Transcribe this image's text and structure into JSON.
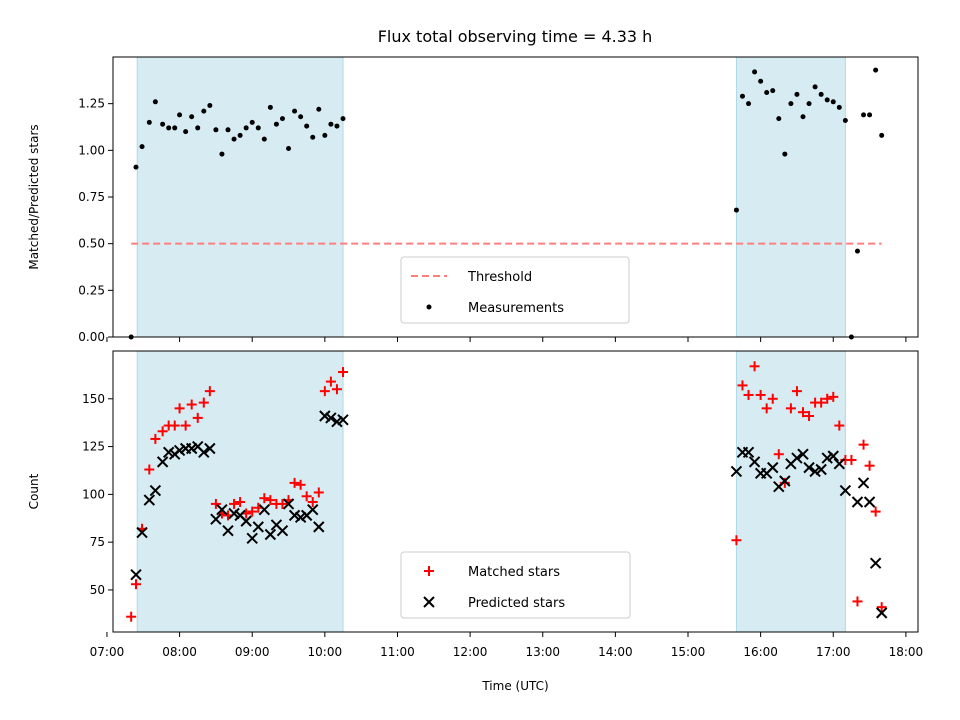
{
  "figure": {
    "title": "Flux total observing time = 4.33 h"
  },
  "chart_data": [
    {
      "type": "scatter",
      "ylabel": "Matched/Predicted stars",
      "xlabel": "",
      "ylim": [
        0,
        1.5
      ],
      "xlim": [
        "07:05",
        "18:10"
      ],
      "yticks": [
        0.0,
        0.25,
        0.5,
        0.75,
        1.0,
        1.25
      ],
      "ytick_labels": [
        "0.00",
        "0.25",
        "0.50",
        "0.75",
        "1.00",
        "1.25"
      ],
      "legend_position": "bottom-center",
      "shaded_intervals": [
        {
          "start": "07:25",
          "end": "10:15"
        },
        {
          "start": "15:40",
          "end": "17:10"
        }
      ],
      "series": [
        {
          "name": "Threshold",
          "type": "line",
          "style": "dashed",
          "color": "#ff7f7f",
          "x": [
            "07:20",
            "17:40"
          ],
          "y": [
            0.5,
            0.5
          ]
        },
        {
          "name": "Measurements",
          "type": "scatter",
          "color": "#000000",
          "points": [
            [
              "07:20",
              0.0
            ],
            [
              "07:24",
              0.91
            ],
            [
              "07:29",
              1.02
            ],
            [
              "07:35",
              1.15
            ],
            [
              "07:40",
              1.26
            ],
            [
              "07:46",
              1.14
            ],
            [
              "07:51",
              1.12
            ],
            [
              "07:56",
              1.12
            ],
            [
              "08:00",
              1.19
            ],
            [
              "08:05",
              1.1
            ],
            [
              "08:10",
              1.18
            ],
            [
              "08:15",
              1.12
            ],
            [
              "08:20",
              1.21
            ],
            [
              "08:25",
              1.24
            ],
            [
              "08:30",
              1.11
            ],
            [
              "08:35",
              0.98
            ],
            [
              "08:40",
              1.11
            ],
            [
              "08:45",
              1.06
            ],
            [
              "08:50",
              1.08
            ],
            [
              "08:55",
              1.12
            ],
            [
              "09:00",
              1.15
            ],
            [
              "09:05",
              1.12
            ],
            [
              "09:10",
              1.06
            ],
            [
              "09:15",
              1.23
            ],
            [
              "09:20",
              1.14
            ],
            [
              "09:25",
              1.17
            ],
            [
              "09:30",
              1.01
            ],
            [
              "09:35",
              1.21
            ],
            [
              "09:40",
              1.18
            ],
            [
              "09:45",
              1.13
            ],
            [
              "09:50",
              1.07
            ],
            [
              "09:55",
              1.22
            ],
            [
              "10:00",
              1.08
            ],
            [
              "10:05",
              1.14
            ],
            [
              "10:10",
              1.13
            ],
            [
              "10:15",
              1.17
            ],
            [
              "15:40",
              0.68
            ],
            [
              "15:45",
              1.29
            ],
            [
              "15:50",
              1.25
            ],
            [
              "15:55",
              1.42
            ],
            [
              "16:00",
              1.37
            ],
            [
              "16:05",
              1.31
            ],
            [
              "16:10",
              1.32
            ],
            [
              "16:15",
              1.17
            ],
            [
              "16:20",
              0.98
            ],
            [
              "16:25",
              1.25
            ],
            [
              "16:30",
              1.3
            ],
            [
              "16:35",
              1.18
            ],
            [
              "16:40",
              1.25
            ],
            [
              "16:45",
              1.34
            ],
            [
              "16:50",
              1.3
            ],
            [
              "16:55",
              1.27
            ],
            [
              "17:00",
              1.26
            ],
            [
              "17:05",
              1.23
            ],
            [
              "17:10",
              1.16
            ],
            [
              "17:15",
              0.0
            ],
            [
              "17:20",
              0.46
            ],
            [
              "17:25",
              1.19
            ],
            [
              "17:30",
              1.19
            ],
            [
              "17:35",
              1.43
            ],
            [
              "17:40",
              1.08
            ]
          ]
        }
      ]
    },
    {
      "type": "scatter",
      "ylabel": "Count",
      "xlabel": "Time (UTC)",
      "ylim": [
        28,
        175
      ],
      "xlim": [
        "07:05",
        "18:10"
      ],
      "yticks": [
        50,
        75,
        100,
        125,
        150
      ],
      "ytick_labels": [
        "50",
        "75",
        "100",
        "125",
        "150"
      ],
      "xticks": [
        "07:00",
        "08:00",
        "09:00",
        "10:00",
        "11:00",
        "12:00",
        "13:00",
        "14:00",
        "15:00",
        "16:00",
        "17:00",
        "18:00"
      ],
      "legend_position": "bottom-center",
      "shaded_intervals": [
        {
          "start": "07:25",
          "end": "10:15"
        },
        {
          "start": "15:40",
          "end": "17:10"
        }
      ],
      "series": [
        {
          "name": "Matched stars",
          "marker": "plus",
          "color": "#ff0000",
          "points": [
            [
              "07:20",
              36
            ],
            [
              "07:24",
              53
            ],
            [
              "07:29",
              82
            ],
            [
              "07:35",
              113
            ],
            [
              "07:40",
              129
            ],
            [
              "07:46",
              133
            ],
            [
              "07:51",
              136
            ],
            [
              "07:56",
              136
            ],
            [
              "08:00",
              145
            ],
            [
              "08:05",
              136
            ],
            [
              "08:10",
              147
            ],
            [
              "08:15",
              140
            ],
            [
              "08:20",
              148
            ],
            [
              "08:25",
              154
            ],
            [
              "08:30",
              95
            ],
            [
              "08:35",
              90
            ],
            [
              "08:40",
              89
            ],
            [
              "08:45",
              95
            ],
            [
              "08:50",
              96
            ],
            [
              "08:55",
              90
            ],
            [
              "09:00",
              91
            ],
            [
              "09:05",
              93
            ],
            [
              "09:10",
              98
            ],
            [
              "09:15",
              97
            ],
            [
              "09:20",
              95
            ],
            [
              "09:25",
              95
            ],
            [
              "09:30",
              97
            ],
            [
              "09:35",
              106
            ],
            [
              "09:40",
              105
            ],
            [
              "09:45",
              99
            ],
            [
              "09:50",
              96
            ],
            [
              "09:55",
              101
            ],
            [
              "10:00",
              154
            ],
            [
              "10:05",
              159
            ],
            [
              "10:10",
              155
            ],
            [
              "10:15",
              164
            ],
            [
              "15:40",
              76
            ],
            [
              "15:45",
              157
            ],
            [
              "15:50",
              152
            ],
            [
              "15:55",
              167
            ],
            [
              "16:00",
              152
            ],
            [
              "16:05",
              145
            ],
            [
              "16:10",
              150
            ],
            [
              "16:15",
              121
            ],
            [
              "16:20",
              106
            ],
            [
              "16:25",
              145
            ],
            [
              "16:30",
              154
            ],
            [
              "16:35",
              143
            ],
            [
              "16:40",
              141
            ],
            [
              "16:45",
              148
            ],
            [
              "16:50",
              148
            ],
            [
              "16:55",
              150
            ],
            [
              "17:00",
              151
            ],
            [
              "17:05",
              136
            ],
            [
              "17:10",
              118
            ],
            [
              "17:15",
              118
            ],
            [
              "17:20",
              44
            ],
            [
              "17:25",
              126
            ],
            [
              "17:30",
              115
            ],
            [
              "17:35",
              91
            ],
            [
              "17:40",
              41
            ]
          ]
        },
        {
          "name": "Predicted stars",
          "marker": "x",
          "color": "#000000",
          "points": [
            [
              "07:24",
              58
            ],
            [
              "07:29",
              80
            ],
            [
              "07:35",
              97
            ],
            [
              "07:40",
              102
            ],
            [
              "07:46",
              117
            ],
            [
              "07:51",
              122
            ],
            [
              "07:56",
              121
            ],
            [
              "08:00",
              123
            ],
            [
              "08:05",
              124
            ],
            [
              "08:10",
              124
            ],
            [
              "08:15",
              125
            ],
            [
              "08:20",
              122
            ],
            [
              "08:25",
              124
            ],
            [
              "08:30",
              87
            ],
            [
              "08:35",
              92
            ],
            [
              "08:40",
              81
            ],
            [
              "08:45",
              90
            ],
            [
              "08:50",
              89
            ],
            [
              "08:55",
              86
            ],
            [
              "09:00",
              77
            ],
            [
              "09:05",
              83
            ],
            [
              "09:10",
              92
            ],
            [
              "09:15",
              79
            ],
            [
              "09:20",
              84
            ],
            [
              "09:25",
              81
            ],
            [
              "09:30",
              95
            ],
            [
              "09:35",
              89
            ],
            [
              "09:40",
              88
            ],
            [
              "09:45",
              89
            ],
            [
              "09:50",
              92
            ],
            [
              "09:55",
              83
            ],
            [
              "10:00",
              141
            ],
            [
              "10:05",
              140
            ],
            [
              "10:10",
              138
            ],
            [
              "10:15",
              139
            ],
            [
              "15:40",
              112
            ],
            [
              "15:45",
              122
            ],
            [
              "15:50",
              122
            ],
            [
              "15:55",
              117
            ],
            [
              "16:00",
              111
            ],
            [
              "16:05",
              111
            ],
            [
              "16:10",
              114
            ],
            [
              "16:15",
              104
            ],
            [
              "16:20",
              107
            ],
            [
              "16:25",
              116
            ],
            [
              "16:30",
              119
            ],
            [
              "16:35",
              121
            ],
            [
              "16:40",
              114
            ],
            [
              "16:45",
              112
            ],
            [
              "16:50",
              113
            ],
            [
              "16:55",
              119
            ],
            [
              "17:00",
              120
            ],
            [
              "17:05",
              116
            ],
            [
              "17:10",
              102
            ],
            [
              "17:20",
              96
            ],
            [
              "17:25",
              106
            ],
            [
              "17:30",
              96
            ],
            [
              "17:35",
              64
            ],
            [
              "17:40",
              38
            ]
          ]
        }
      ]
    }
  ]
}
